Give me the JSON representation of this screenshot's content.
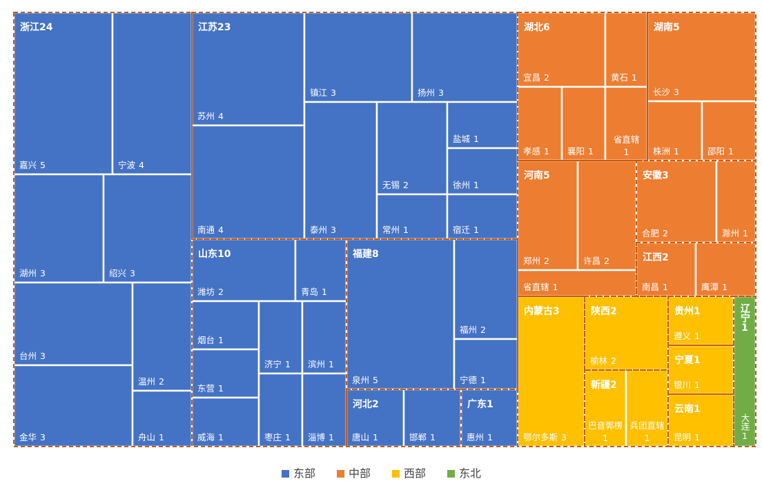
{
  "chart_data": {
    "type": "treemap",
    "series": [
      {
        "name": "东部",
        "color": "#4472c4",
        "children": [
          {
            "name": "浙江",
            "value": 24,
            "children": [
              {
                "name": "嘉兴",
                "value": 5
              },
              {
                "name": "宁波",
                "value": 4
              },
              {
                "name": "湖州",
                "value": 3
              },
              {
                "name": "绍兴",
                "value": 3
              },
              {
                "name": "台州",
                "value": 3
              },
              {
                "name": "金华",
                "value": 3
              },
              {
                "name": "温州",
                "value": 2
              },
              {
                "name": "舟山",
                "value": 1
              }
            ]
          },
          {
            "name": "江苏",
            "value": 23,
            "children": [
              {
                "name": "苏州",
                "value": 4
              },
              {
                "name": "南通",
                "value": 4
              },
              {
                "name": "镇江",
                "value": 3
              },
              {
                "name": "扬州",
                "value": 3
              },
              {
                "name": "泰州",
                "value": 3
              },
              {
                "name": "无锡",
                "value": 2
              },
              {
                "name": "常州",
                "value": 1
              },
              {
                "name": "盐城",
                "value": 1
              },
              {
                "name": "徐州",
                "value": 1
              },
              {
                "name": "宿迁",
                "value": 1
              }
            ]
          },
          {
            "name": "山东",
            "value": 10,
            "children": [
              {
                "name": "潍坊",
                "value": 2
              },
              {
                "name": "青岛",
                "value": 1
              },
              {
                "name": "烟台",
                "value": 1
              },
              {
                "name": "东营",
                "value": 1
              },
              {
                "name": "威海",
                "value": 1
              },
              {
                "name": "济宁",
                "value": 1
              },
              {
                "name": "枣庄",
                "value": 1
              },
              {
                "name": "滨州",
                "value": 1
              },
              {
                "name": "淄博",
                "value": 1
              }
            ]
          },
          {
            "name": "福建",
            "value": 8,
            "children": [
              {
                "name": "泉州",
                "value": 5
              },
              {
                "name": "福州",
                "value": 2
              },
              {
                "name": "宁德",
                "value": 1
              }
            ]
          },
          {
            "name": "河北",
            "value": 2,
            "children": [
              {
                "name": "唐山",
                "value": 1
              },
              {
                "name": "邯郸",
                "value": 1
              }
            ]
          },
          {
            "name": "广东",
            "value": 1,
            "children": [
              {
                "name": "惠州",
                "value": 1
              }
            ]
          }
        ]
      },
      {
        "name": "中部",
        "color": "#ed7d31",
        "children": [
          {
            "name": "湖北",
            "value": 6,
            "children": [
              {
                "name": "宜昌",
                "value": 2
              },
              {
                "name": "黄石",
                "value": 1
              },
              {
                "name": "孝感",
                "value": 1
              },
              {
                "name": "襄阳",
                "value": 1
              },
              {
                "name": "省直辖",
                "value": 1
              }
            ]
          },
          {
            "name": "湖南",
            "value": 5,
            "children": [
              {
                "name": "长沙",
                "value": 3
              },
              {
                "name": "株洲",
                "value": 1
              },
              {
                "name": "邵阳",
                "value": 1
              }
            ]
          },
          {
            "name": "河南",
            "value": 5,
            "children": [
              {
                "name": "郑州",
                "value": 2
              },
              {
                "name": "许昌",
                "value": 2
              },
              {
                "name": "省直辖",
                "value": 1
              }
            ]
          },
          {
            "name": "安徽",
            "value": 3,
            "children": [
              {
                "name": "合肥",
                "value": 2
              },
              {
                "name": "滁州",
                "value": 1
              }
            ]
          },
          {
            "name": "江西",
            "value": 2,
            "children": [
              {
                "name": "南昌",
                "value": 1
              },
              {
                "name": "鹰潭",
                "value": 1
              }
            ]
          }
        ]
      },
      {
        "name": "西部",
        "color": "#ffc000",
        "children": [
          {
            "name": "内蒙古",
            "value": 3,
            "children": [
              {
                "name": "鄂尔多斯",
                "value": 3
              }
            ]
          },
          {
            "name": "陕西",
            "value": 2,
            "children": [
              {
                "name": "榆林",
                "value": 2
              }
            ]
          },
          {
            "name": "新疆",
            "value": 2,
            "children": [
              {
                "name": "巴音郭楞",
                "value": 1
              },
              {
                "name": "兵团直辖",
                "value": 1
              }
            ]
          },
          {
            "name": "贵州",
            "value": 1,
            "children": [
              {
                "name": "遵义",
                "value": 1
              }
            ]
          },
          {
            "name": "宁夏",
            "value": 1,
            "children": [
              {
                "name": "银川",
                "value": 1
              }
            ]
          },
          {
            "name": "云南",
            "value": 1,
            "children": [
              {
                "name": "昆明",
                "value": 1
              }
            ]
          }
        ]
      },
      {
        "name": "东北",
        "color": "#70ad47",
        "children": [
          {
            "name": "辽宁",
            "value": 1,
            "children": [
              {
                "name": "大连",
                "value": 1
              }
            ]
          }
        ]
      }
    ]
  }
}
